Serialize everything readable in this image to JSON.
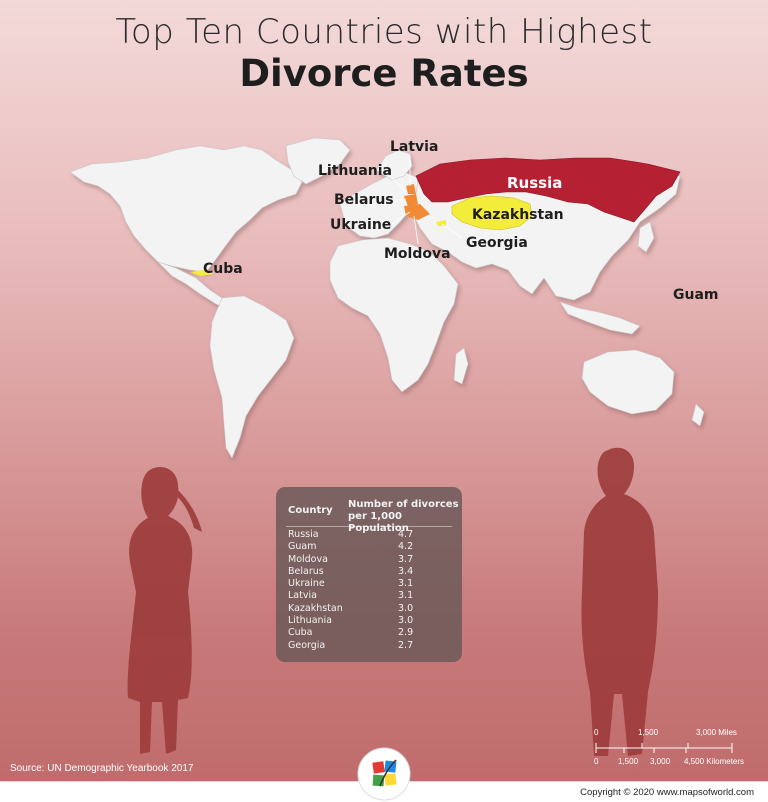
{
  "header": {
    "title_line1": "Top Ten Countries with Highest",
    "title_line2": "Divorce Rates"
  },
  "map_labels": {
    "latvia": "Latvia",
    "lithuania": "Lithuania",
    "belarus": "Belarus",
    "ukraine": "Ukraine",
    "moldova": "Moldova",
    "russia": "Russia",
    "kazakhstan": "Kazakhstan",
    "georgia": "Georgia",
    "cuba": "Cuba",
    "guam": "Guam"
  },
  "highlight_colors": {
    "russia": "#b52033",
    "kazakhstan": "#f4ec3a",
    "belarus_ukraine": "#f08a36",
    "cuba": "#f4ec3a",
    "land": "#f3f3f3"
  },
  "table": {
    "header_country": "Country",
    "header_number_line1": "Number of divorces",
    "header_number_line2": "per 1,000 Population",
    "rows": [
      {
        "country": "Russia",
        "value": "4.7"
      },
      {
        "country": "Guam",
        "value": "4.2"
      },
      {
        "country": "Moldova",
        "value": "3.7"
      },
      {
        "country": "Belarus",
        "value": "3.4"
      },
      {
        "country": "Ukraine",
        "value": "3.1"
      },
      {
        "country": "Latvia",
        "value": "3.1"
      },
      {
        "country": "Kazakhstan",
        "value": "3.0"
      },
      {
        "country": "Lithuania",
        "value": "3.0"
      },
      {
        "country": "Cuba",
        "value": "2.9"
      },
      {
        "country": "Georgia",
        "value": "2.7"
      }
    ]
  },
  "scale_bar": {
    "miles": [
      "0",
      "1,500",
      "3,000 Miles"
    ],
    "kilometers": [
      "0",
      "1,500",
      "3,000",
      "4,500 Kilometers"
    ]
  },
  "source": "Source: UN Demographic Yearbook 2017",
  "copyright": "Copyright © 2020 www.mapsofworld.com",
  "logo_text": "mapsofworld.com"
}
